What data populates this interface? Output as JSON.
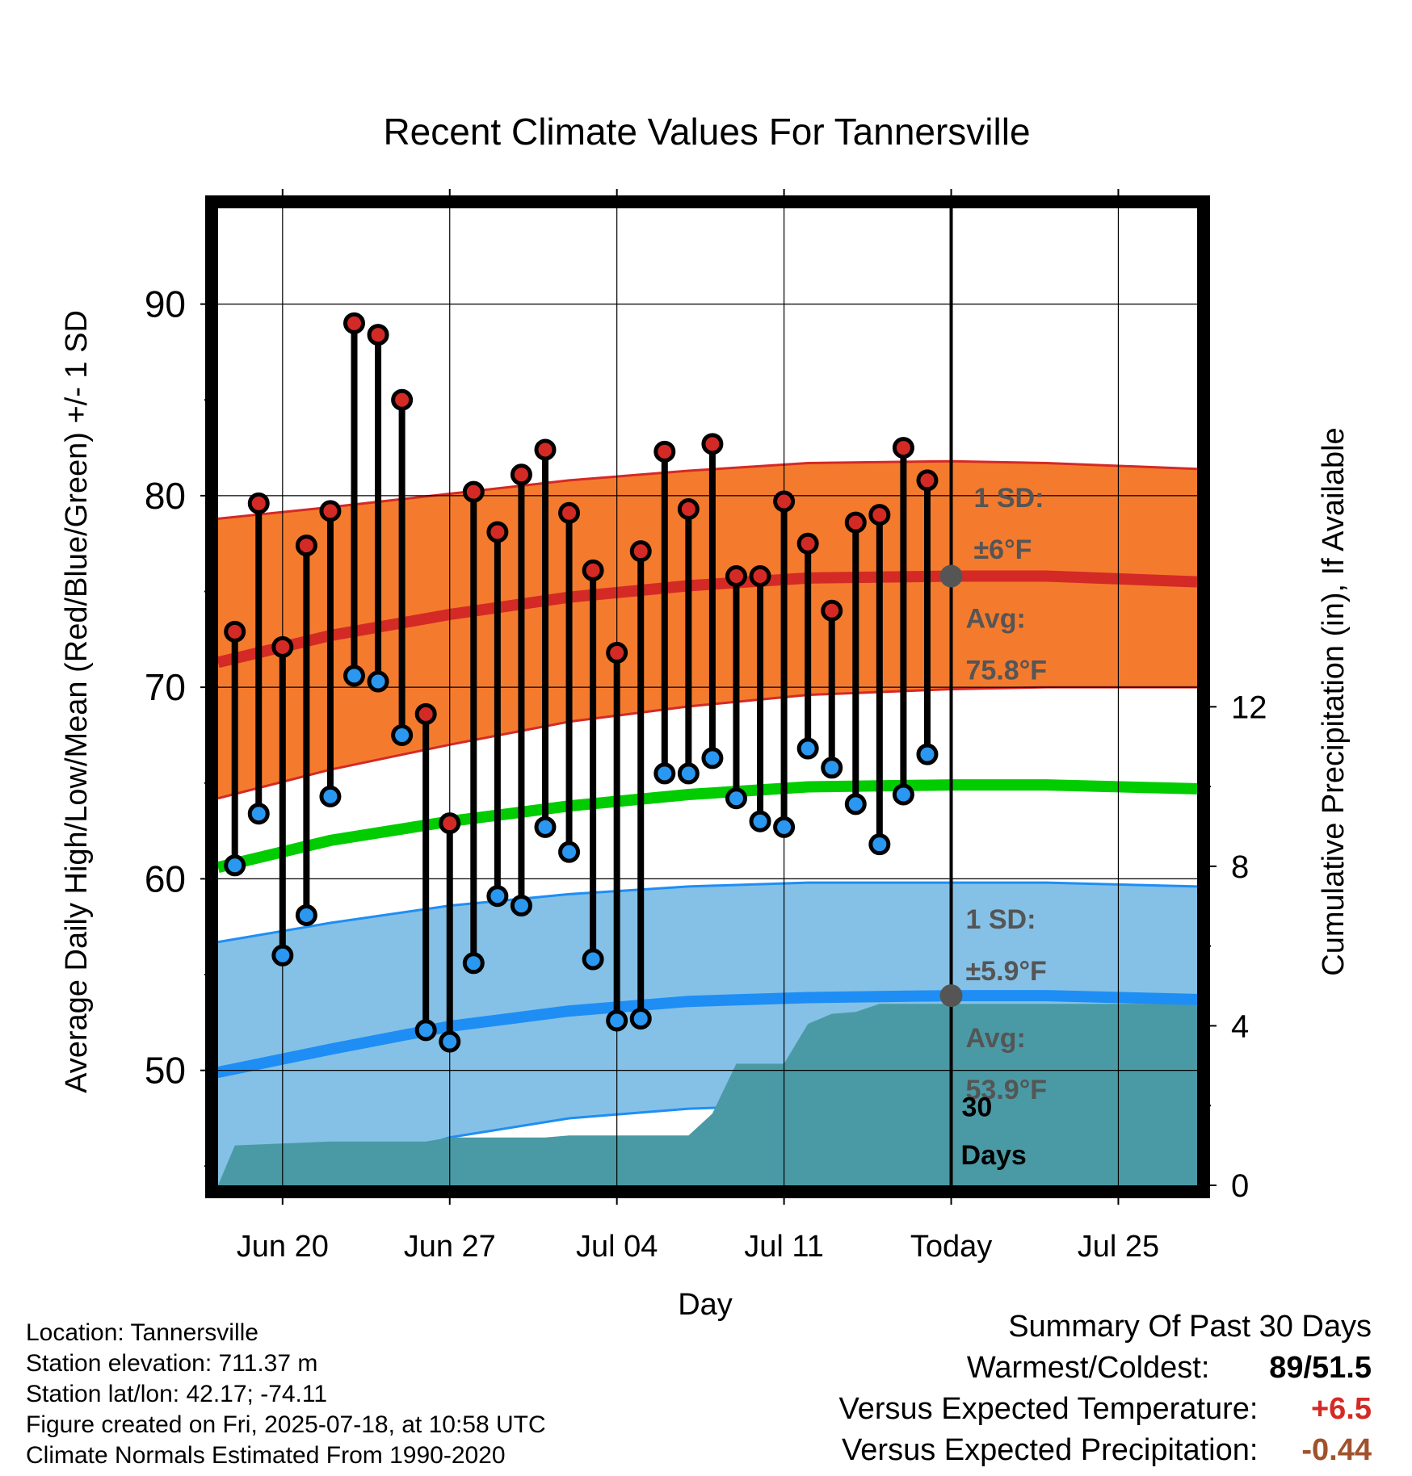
{
  "chart_data": {
    "type": "line",
    "title": "Recent Climate Values For Tannersville",
    "xlabel": "Day",
    "ylabel": "Average Daily High/Low/Mean (Red/Blue/Green) +/- 1 SD",
    "y2label": "Cumulative Precipitation (in), If Available",
    "ylim": [
      44,
      95
    ],
    "y2lim": [
      0,
      24.5
    ],
    "yticks": [
      "50",
      "60",
      "70",
      "80",
      "90"
    ],
    "y2ticks": [
      "0",
      "4",
      "8",
      "12"
    ],
    "x_ticks": [
      {
        "day": 3,
        "label": "Jun 20"
      },
      {
        "day": 10,
        "label": "Jun 27"
      },
      {
        "day": 17,
        "label": "Jul 04"
      },
      {
        "day": 24,
        "label": "Jul 11"
      },
      {
        "day": 31,
        "label": "Today"
      },
      {
        "day": 38,
        "label": "Jul 25"
      }
    ],
    "x_days_range": [
      0.3,
      41.3
    ],
    "daily_high": [
      72.9,
      79.6,
      72.1,
      77.4,
      79.2,
      89.0,
      88.4,
      85.0,
      68.6,
      62.9,
      80.2,
      78.1,
      81.1,
      82.4,
      79.1,
      76.1,
      71.8,
      77.1,
      82.3,
      79.3,
      82.7,
      75.8,
      75.8,
      79.7,
      77.5,
      74.0,
      78.6,
      79.0,
      82.5,
      80.8
    ],
    "daily_low": [
      60.7,
      63.4,
      56.0,
      58.1,
      64.3,
      70.6,
      70.3,
      67.5,
      52.1,
      51.5,
      55.6,
      59.1,
      58.6,
      62.7,
      61.4,
      55.8,
      52.6,
      52.7,
      65.5,
      65.5,
      66.3,
      64.2,
      63.0,
      62.7,
      66.8,
      65.8,
      63.9,
      61.8,
      64.4,
      66.5
    ],
    "days_start": 1,
    "normals_days": [
      0.3,
      5,
      10,
      15,
      20,
      25,
      31,
      35,
      41.3
    ],
    "normal_high": [
      71.3,
      72.7,
      73.8,
      74.7,
      75.3,
      75.7,
      75.8,
      75.8,
      75.5
    ],
    "normal_high_upper": [
      78.8,
      79.4,
      80.1,
      80.8,
      81.3,
      81.7,
      81.8,
      81.7,
      81.4
    ],
    "normal_high_lower": [
      64.2,
      65.7,
      67.0,
      68.2,
      69.0,
      69.6,
      69.9,
      70.0,
      70.0
    ],
    "normal_mean": [
      60.6,
      62.0,
      63.0,
      63.8,
      64.4,
      64.8,
      64.9,
      64.9,
      64.7
    ],
    "normal_low": [
      49.9,
      51.1,
      52.3,
      53.1,
      53.6,
      53.8,
      53.9,
      53.9,
      53.7
    ],
    "normal_low_upper": [
      56.7,
      57.7,
      58.6,
      59.2,
      59.6,
      59.8,
      59.8,
      59.8,
      59.6
    ],
    "normal_low_lower": [
      43.5,
      44.6,
      46.5,
      47.5,
      48.0,
      48.2,
      48.3,
      48.3,
      48.2
    ],
    "precip_steps": [
      [
        0.3,
        0
      ],
      [
        1.0,
        1.0
      ],
      [
        5.0,
        1.1
      ],
      [
        9.0,
        1.1
      ],
      [
        10.0,
        1.2
      ],
      [
        14.0,
        1.2
      ],
      [
        15.0,
        1.25
      ],
      [
        20.0,
        1.25
      ],
      [
        21.0,
        1.8
      ],
      [
        22.0,
        3.05
      ],
      [
        24.0,
        3.05
      ],
      [
        25.0,
        4.05
      ],
      [
        26.0,
        4.3
      ],
      [
        27.0,
        4.35
      ],
      [
        28.0,
        4.55
      ],
      [
        41.3,
        4.55
      ]
    ],
    "today_day": 31,
    "annotations": {
      "high_sd": "1 SD:",
      "high_sd_value": "±6°F",
      "high_avg": "Avg:",
      "high_avg_value": "75.8°F",
      "low_sd": "1 SD:",
      "low_sd_value": "±5.9°F",
      "low_avg": "Avg:",
      "low_avg_value": "53.9°F",
      "days_count": "30",
      "days_word": "Days"
    },
    "grid": true,
    "colors": {
      "high_band": "#f47b2e",
      "high_line": "#d42a25",
      "mean_line": "#00cc00",
      "low_band": "#85c1e6",
      "low_line": "#1e8ef5",
      "precip": "#4a9aa5",
      "high_dot": "#d42a25",
      "low_dot": "#2a97f0",
      "annotation_text": "#555555"
    }
  },
  "footer": {
    "location": "Location: Tannersville",
    "elevation": "Station elevation: 711.37 m",
    "latlon": "Station lat/lon: 42.17; -74.11",
    "created": "Figure created on Fri, 2025-07-18, at 10:58 UTC",
    "normals": "Climate Normals Estimated From 1990-2020"
  },
  "summary": {
    "title": "Summary Of Past 30 Days",
    "warm_label": "Warmest/Coldest:",
    "warm_value": "89/51.5",
    "temp_label": "Versus Expected Temperature:",
    "temp_value": "+6.5",
    "precip_label": "Versus Expected Precipitation:",
    "precip_value": "-0.44",
    "temp_color": "#d42a25",
    "precip_color": "#a0522d"
  }
}
